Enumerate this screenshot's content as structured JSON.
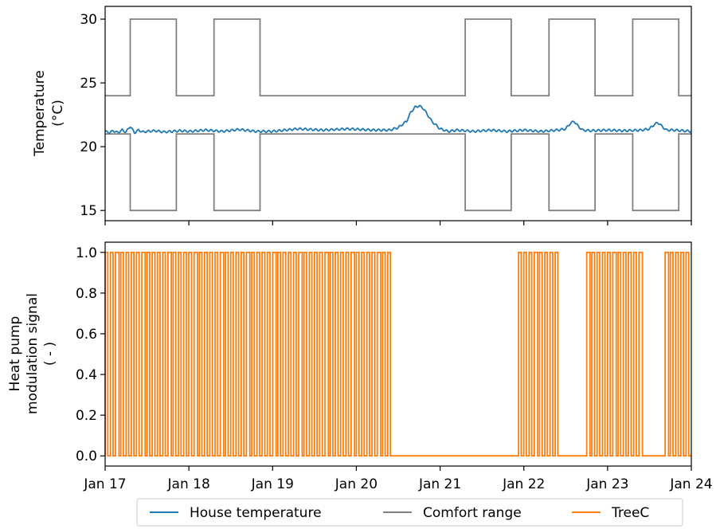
{
  "chart_data": [
    {
      "type": "line",
      "title": "",
      "ylabel_lines": [
        "Temperature",
        "(°C)"
      ],
      "xlim": [
        "Jan 17",
        "Jan 24"
      ],
      "ylim": [
        14.2,
        31
      ],
      "yticks": [
        15,
        20,
        25,
        30
      ],
      "grid": false,
      "series": [
        {
          "name": "House temperature",
          "color": "#1f77b4",
          "x_days": [
            0.0,
            0.05,
            0.1,
            0.15,
            0.2,
            0.25,
            0.3,
            0.35,
            0.4,
            0.45,
            0.5,
            0.6,
            0.7,
            0.8,
            0.9,
            1.0,
            1.2,
            1.4,
            1.6,
            1.8,
            2.0,
            2.3,
            2.6,
            2.9,
            3.2,
            3.4,
            3.5,
            3.6,
            3.65,
            3.7,
            3.75,
            3.8,
            3.85,
            3.9,
            3.95,
            4.0,
            4.05,
            4.1,
            4.2,
            4.4,
            4.6,
            4.8,
            5.0,
            5.2,
            5.4,
            5.5,
            5.55,
            5.6,
            5.65,
            5.7,
            5.8,
            6.0,
            6.2,
            6.4,
            6.5,
            6.55,
            6.6,
            6.65,
            6.7,
            6.8,
            7.0
          ],
          "y": [
            21.2,
            21.1,
            21.25,
            21.1,
            21.3,
            21.15,
            21.6,
            21.1,
            21.3,
            21.15,
            21.2,
            21.25,
            21.15,
            21.2,
            21.25,
            21.2,
            21.3,
            21.2,
            21.35,
            21.2,
            21.2,
            21.4,
            21.3,
            21.4,
            21.3,
            21.3,
            21.5,
            22.0,
            22.7,
            23.1,
            23.2,
            23.0,
            22.5,
            22.0,
            21.7,
            21.4,
            21.3,
            21.2,
            21.3,
            21.2,
            21.3,
            21.2,
            21.3,
            21.2,
            21.3,
            21.4,
            21.8,
            22.0,
            21.6,
            21.3,
            21.25,
            21.3,
            21.25,
            21.3,
            21.4,
            21.7,
            21.9,
            21.6,
            21.3,
            21.3,
            21.2
          ]
        },
        {
          "name": "Comfort range",
          "color": "#808080",
          "lower": {
            "x_days": [
              0.0,
              0.3,
              0.3,
              0.85,
              0.85,
              1.3,
              1.3,
              1.85,
              1.85,
              4.3,
              4.3,
              4.85,
              4.85,
              5.3,
              5.3,
              5.85,
              5.85,
              6.3,
              6.3,
              6.85,
              6.85,
              7.0
            ],
            "y": [
              21,
              21,
              15,
              15,
              21,
              21,
              15,
              15,
              21,
              21,
              15,
              15,
              21,
              21,
              15,
              15,
              21,
              21,
              15,
              15,
              21,
              21
            ]
          },
          "upper": {
            "x_days": [
              0.0,
              0.3,
              0.3,
              0.85,
              0.85,
              1.3,
              1.3,
              1.85,
              1.85,
              4.3,
              4.3,
              4.85,
              4.85,
              5.3,
              5.3,
              5.85,
              5.85,
              6.3,
              6.3,
              6.85,
              6.85,
              7.0
            ],
            "y": [
              24,
              24,
              30,
              30,
              24,
              24,
              30,
              30,
              24,
              24,
              30,
              30,
              24,
              24,
              30,
              30,
              24,
              24,
              30,
              30,
              24,
              24
            ]
          }
        }
      ]
    },
    {
      "type": "line",
      "title": "",
      "ylabel_lines": [
        "Heat pump",
        "modulation signal",
        "( - )"
      ],
      "xlim": [
        "Jan 17",
        "Jan 24"
      ],
      "ylim": [
        -0.05,
        1.05
      ],
      "yticks": [
        "0.0",
        "0.2",
        "0.4",
        "0.6",
        "0.8",
        "1.0"
      ],
      "grid": false,
      "series": [
        {
          "name": "TreeC",
          "color": "#ff7f0e",
          "pulse_period_hours": 1.5,
          "on_intervals_days": [
            [
              0.0,
              3.42
            ],
            [
              4.92,
              5.42
            ],
            [
              5.7,
              6.42
            ],
            [
              6.68,
              7.0
            ]
          ]
        }
      ]
    }
  ],
  "x_ticks": [
    "Jan 17",
    "Jan 18",
    "Jan 19",
    "Jan 20",
    "Jan 21",
    "Jan 22",
    "Jan 23",
    "Jan 24"
  ],
  "legend": {
    "items": [
      {
        "label": "House temperature",
        "color": "#1f77b4"
      },
      {
        "label": "Comfort range",
        "color": "#808080"
      },
      {
        "label": "TreeC",
        "color": "#ff7f0e"
      }
    ]
  }
}
